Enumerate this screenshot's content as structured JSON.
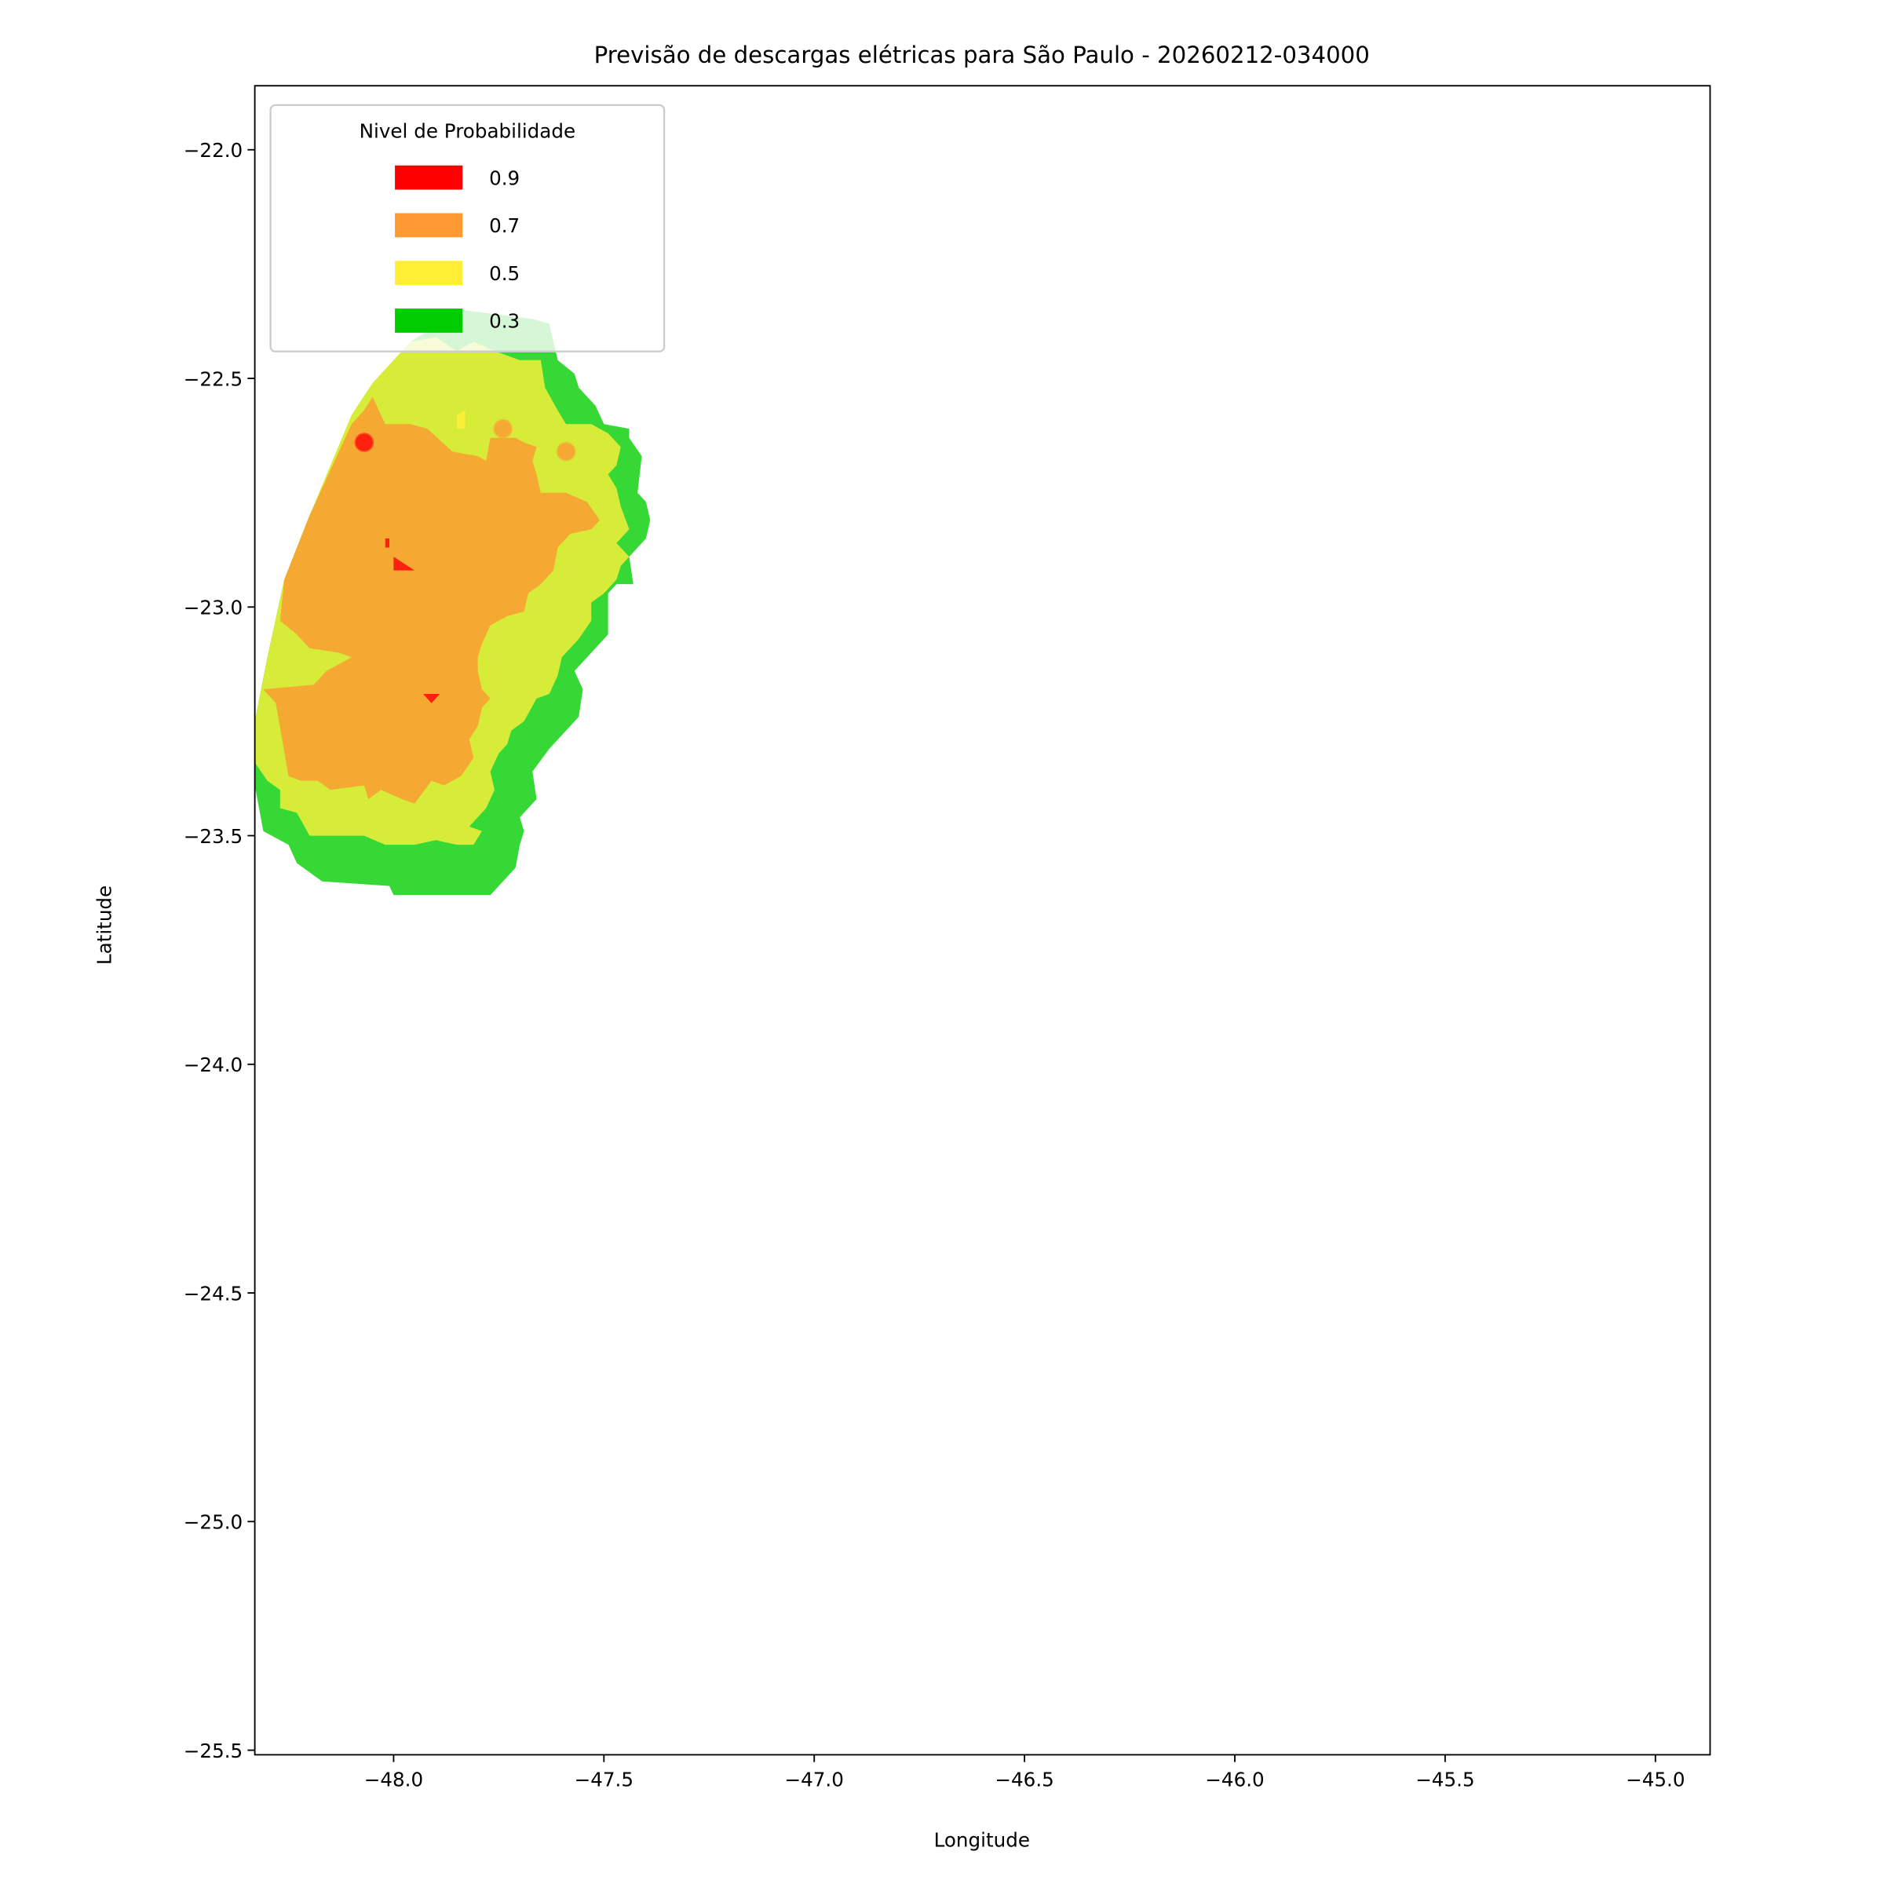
{
  "chart_data": {
    "type": "contour-map",
    "title": "Previsão de descargas elétricas para São Paulo - 20260212-034000",
    "xlabel": "Longitude",
    "ylabel": "Latitude",
    "xlim": [
      -48.33,
      -44.87
    ],
    "ylim": [
      -25.51,
      -21.86
    ],
    "xticks": [
      -48.0,
      -47.5,
      -47.0,
      -46.5,
      -46.0,
      -45.5,
      -45.0
    ],
    "xtick_labels": [
      "−48.0",
      "−47.5",
      "−47.0",
      "−46.5",
      "−46.0",
      "−45.5",
      "−45.0"
    ],
    "yticks": [
      -22.0,
      -22.5,
      -23.0,
      -23.5,
      -24.0,
      -24.5,
      -25.0,
      -25.5
    ],
    "ytick_labels": [
      "−22.0",
      "−22.5",
      "−23.0",
      "−23.5",
      "−24.0",
      "−24.5",
      "−25.0",
      "−25.5"
    ],
    "grid": false,
    "legend": {
      "title": "Nivel de Probabilidade",
      "placement": "top-left",
      "entries": [
        {
          "label": "0.9",
          "color": "#ff0000"
        },
        {
          "label": "0.7",
          "color": "#ff9933"
        },
        {
          "label": "0.5",
          "color": "#ffee33"
        },
        {
          "label": "0.3",
          "color": "#00cc00"
        }
      ]
    },
    "regions": [
      {
        "level": 0.3,
        "color": "#35d835",
        "polygon": [
          [
            -48.33,
            -23.39
          ],
          [
            -48.31,
            -23.49
          ],
          [
            -48.25,
            -23.52
          ],
          [
            -48.23,
            -23.56
          ],
          [
            -48.17,
            -23.6
          ],
          [
            -48.01,
            -23.61
          ],
          [
            -48.0,
            -23.63
          ],
          [
            -47.95,
            -23.63
          ],
          [
            -47.85,
            -23.63
          ],
          [
            -47.81,
            -23.63
          ],
          [
            -47.77,
            -23.63
          ],
          [
            -47.71,
            -23.57
          ],
          [
            -47.7,
            -23.52
          ],
          [
            -47.69,
            -23.49
          ],
          [
            -47.7,
            -23.46
          ],
          [
            -47.66,
            -23.42
          ],
          [
            -47.67,
            -23.36
          ],
          [
            -47.63,
            -23.31
          ],
          [
            -47.6,
            -23.28
          ],
          [
            -47.56,
            -23.24
          ],
          [
            -47.55,
            -23.18
          ],
          [
            -47.57,
            -23.14
          ],
          [
            -47.53,
            -23.1
          ],
          [
            -47.49,
            -23.06
          ],
          [
            -47.49,
            -22.97
          ],
          [
            -47.47,
            -22.95
          ],
          [
            -47.43,
            -22.95
          ],
          [
            -47.44,
            -22.89
          ],
          [
            -47.4,
            -22.85
          ],
          [
            -47.39,
            -22.81
          ],
          [
            -47.4,
            -22.77
          ],
          [
            -47.42,
            -22.75
          ],
          [
            -47.41,
            -22.67
          ],
          [
            -47.44,
            -22.63
          ],
          [
            -47.44,
            -22.61
          ],
          [
            -47.5,
            -22.6
          ],
          [
            -47.52,
            -22.56
          ],
          [
            -47.56,
            -22.52
          ],
          [
            -47.57,
            -22.49
          ],
          [
            -47.61,
            -22.46
          ],
          [
            -47.62,
            -22.42
          ],
          [
            -47.63,
            -22.38
          ],
          [
            -47.67,
            -22.37
          ],
          [
            -47.84,
            -22.35
          ],
          [
            -47.96,
            -22.42
          ],
          [
            -48.07,
            -22.57
          ],
          [
            -48.2,
            -22.8
          ],
          [
            -48.26,
            -22.94
          ],
          [
            -48.3,
            -23.11
          ],
          [
            -48.33,
            -23.25
          ]
        ]
      },
      {
        "level": 0.5,
        "color": "#d6ec38",
        "polygon": [
          [
            -48.33,
            -23.34
          ],
          [
            -48.3,
            -23.38
          ],
          [
            -48.27,
            -23.4
          ],
          [
            -48.27,
            -23.44
          ],
          [
            -48.23,
            -23.45
          ],
          [
            -48.2,
            -23.5
          ],
          [
            -48.15,
            -23.5
          ],
          [
            -48.07,
            -23.5
          ],
          [
            -48.02,
            -23.52
          ],
          [
            -47.95,
            -23.52
          ],
          [
            -47.9,
            -23.51
          ],
          [
            -47.85,
            -23.52
          ],
          [
            -47.81,
            -23.52
          ],
          [
            -47.79,
            -23.49
          ],
          [
            -47.82,
            -23.48
          ],
          [
            -47.78,
            -23.44
          ],
          [
            -47.76,
            -23.4
          ],
          [
            -47.77,
            -23.36
          ],
          [
            -47.75,
            -23.32
          ],
          [
            -47.73,
            -23.3
          ],
          [
            -47.72,
            -23.27
          ],
          [
            -47.69,
            -23.25
          ],
          [
            -47.66,
            -23.2
          ],
          [
            -47.63,
            -23.19
          ],
          [
            -47.61,
            -23.15
          ],
          [
            -47.6,
            -23.11
          ],
          [
            -47.56,
            -23.07
          ],
          [
            -47.53,
            -23.03
          ],
          [
            -47.53,
            -22.99
          ],
          [
            -47.5,
            -22.97
          ],
          [
            -47.47,
            -22.94
          ],
          [
            -47.46,
            -22.91
          ],
          [
            -47.44,
            -22.89
          ],
          [
            -47.47,
            -22.86
          ],
          [
            -47.44,
            -22.83
          ],
          [
            -47.46,
            -22.78
          ],
          [
            -47.47,
            -22.74
          ],
          [
            -47.49,
            -22.71
          ],
          [
            -47.47,
            -22.69
          ],
          [
            -47.46,
            -22.65
          ],
          [
            -47.49,
            -22.62
          ],
          [
            -47.53,
            -22.6
          ],
          [
            -47.59,
            -22.6
          ],
          [
            -47.61,
            -22.57
          ],
          [
            -47.64,
            -22.52
          ],
          [
            -47.65,
            -22.46
          ],
          [
            -47.7,
            -22.46
          ],
          [
            -47.76,
            -22.44
          ],
          [
            -47.81,
            -22.42
          ],
          [
            -47.85,
            -22.44
          ],
          [
            -47.9,
            -22.41
          ],
          [
            -47.96,
            -22.42
          ],
          [
            -48.01,
            -22.47
          ],
          [
            -48.05,
            -22.51
          ],
          [
            -48.1,
            -22.58
          ],
          [
            -48.2,
            -22.8
          ],
          [
            -48.26,
            -22.94
          ],
          [
            -48.3,
            -23.11
          ],
          [
            -48.33,
            -23.25
          ]
        ]
      },
      {
        "level": 0.5,
        "color": "#f9ee3a",
        "polygon": [
          [
            -47.85,
            -22.58
          ],
          [
            -47.83,
            -22.57
          ],
          [
            -47.83,
            -22.61
          ],
          [
            -47.85,
            -22.61
          ]
        ]
      },
      {
        "level": 0.7,
        "color": "#f5a933",
        "polygon": [
          [
            -48.07,
            -22.57
          ],
          [
            -48.05,
            -22.54
          ],
          [
            -48.02,
            -22.6
          ],
          [
            -47.96,
            -22.6
          ],
          [
            -47.92,
            -22.61
          ],
          [
            -47.86,
            -22.66
          ],
          [
            -47.8,
            -22.67
          ],
          [
            -47.78,
            -22.68
          ],
          [
            -47.77,
            -22.63
          ],
          [
            -47.75,
            -22.63
          ],
          [
            -47.71,
            -22.63
          ],
          [
            -47.69,
            -22.64
          ],
          [
            -47.66,
            -22.65
          ],
          [
            -47.67,
            -22.68
          ],
          [
            -47.66,
            -22.71
          ],
          [
            -47.65,
            -22.75
          ],
          [
            -47.59,
            -22.75
          ],
          [
            -47.54,
            -22.77
          ],
          [
            -47.51,
            -22.81
          ],
          [
            -47.53,
            -22.83
          ],
          [
            -47.58,
            -22.84
          ],
          [
            -47.61,
            -22.87
          ],
          [
            -47.62,
            -22.92
          ],
          [
            -47.65,
            -22.95
          ],
          [
            -47.68,
            -22.97
          ],
          [
            -47.69,
            -23.01
          ],
          [
            -47.73,
            -23.02
          ],
          [
            -47.77,
            -23.04
          ],
          [
            -47.79,
            -23.08
          ],
          [
            -47.8,
            -23.11
          ],
          [
            -47.8,
            -23.14
          ],
          [
            -47.79,
            -23.18
          ],
          [
            -47.77,
            -23.2
          ],
          [
            -47.79,
            -23.22
          ],
          [
            -47.8,
            -23.26
          ],
          [
            -47.82,
            -23.29
          ],
          [
            -47.81,
            -23.33
          ],
          [
            -47.84,
            -23.37
          ],
          [
            -47.88,
            -23.39
          ],
          [
            -47.91,
            -23.38
          ],
          [
            -47.95,
            -23.43
          ],
          [
            -47.98,
            -23.42
          ],
          [
            -48.03,
            -23.4
          ],
          [
            -48.06,
            -23.42
          ],
          [
            -48.07,
            -23.39
          ],
          [
            -48.15,
            -23.4
          ],
          [
            -48.18,
            -23.38
          ],
          [
            -48.22,
            -23.38
          ],
          [
            -48.25,
            -23.37
          ],
          [
            -48.28,
            -23.21
          ],
          [
            -48.31,
            -23.18
          ],
          [
            -48.19,
            -23.17
          ],
          [
            -48.16,
            -23.14
          ],
          [
            -48.1,
            -23.11
          ],
          [
            -48.13,
            -23.1
          ],
          [
            -48.2,
            -23.09
          ],
          [
            -48.23,
            -23.06
          ],
          [
            -48.27,
            -23.03
          ],
          [
            -48.26,
            -22.94
          ],
          [
            -48.2,
            -22.8
          ],
          [
            -48.1,
            -22.6
          ]
        ]
      },
      {
        "level": 0.9,
        "color": "#ff2010",
        "polygon": [
          [
            -48.0,
            -22.89
          ],
          [
            -47.95,
            -22.92
          ],
          [
            -48.0,
            -22.92
          ]
        ]
      },
      {
        "level": 0.9,
        "color": "#ff2010",
        "polygon": [
          [
            -48.02,
            -22.85
          ],
          [
            -48.01,
            -22.85
          ],
          [
            -48.01,
            -22.87
          ],
          [
            -48.02,
            -22.87
          ]
        ]
      },
      {
        "level": 0.9,
        "color": "#ff2010",
        "polygon": [
          [
            -47.93,
            -23.19
          ],
          [
            -47.89,
            -23.19
          ],
          [
            -47.91,
            -23.21
          ]
        ]
      }
    ],
    "points": [
      {
        "lon": -48.07,
        "lat": -22.64,
        "level": 0.9,
        "color": "#ff2010"
      },
      {
        "lon": -47.74,
        "lat": -22.61,
        "level": 0.7,
        "color": "#f5a933"
      },
      {
        "lon": -47.59,
        "lat": -22.66,
        "level": 0.7,
        "color": "#f5a933"
      }
    ]
  }
}
